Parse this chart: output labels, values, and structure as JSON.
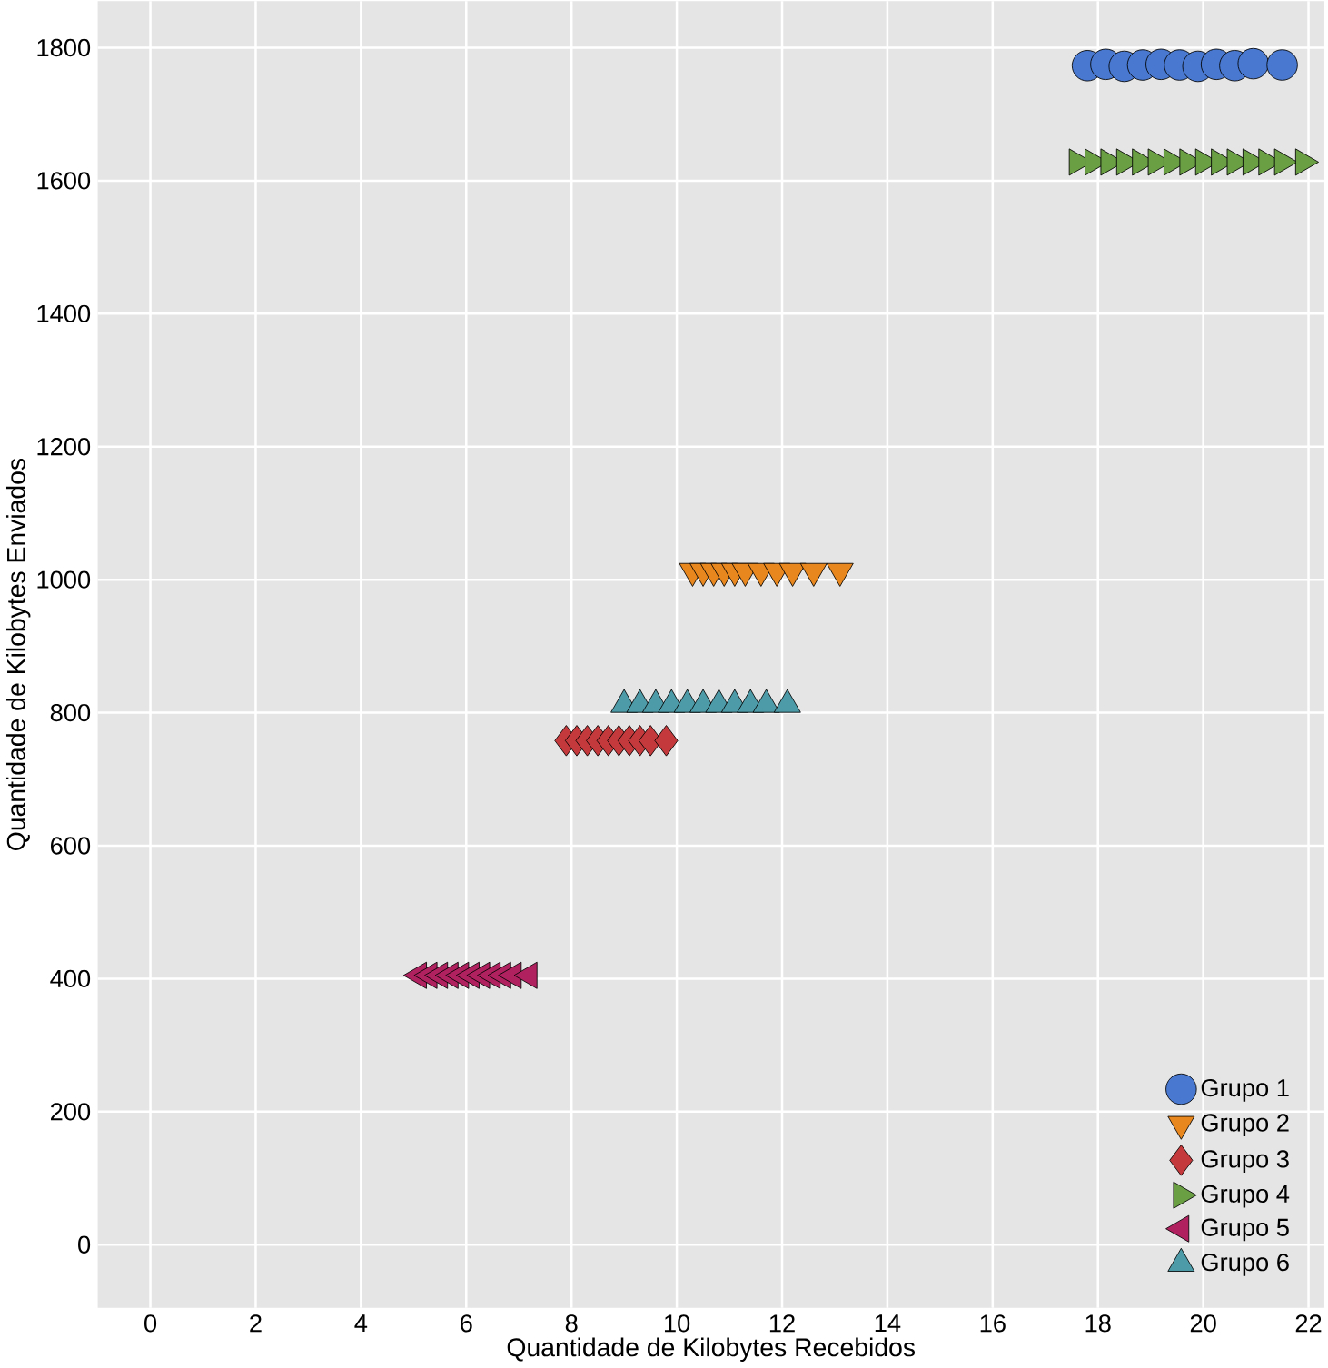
{
  "chart_data": {
    "type": "scatter",
    "xlabel": "Quantidade de Kilobytes Recebidos",
    "ylabel": "Quantidade de Kilobytes Enviados",
    "xlim": [
      -1,
      22.3
    ],
    "ylim": [
      -95,
      1870
    ],
    "xticks": [
      0,
      2,
      4,
      6,
      8,
      10,
      12,
      14,
      16,
      18,
      20,
      22
    ],
    "yticks": [
      0,
      200,
      400,
      600,
      800,
      1000,
      1200,
      1400,
      1600,
      1800
    ],
    "grid": true,
    "legend": "bottom right",
    "series": [
      {
        "name": "Grupo 1",
        "color": "#4878cf",
        "marker": "circle",
        "x": [
          17.8,
          18.15,
          18.5,
          18.85,
          19.2,
          19.55,
          19.9,
          20.25,
          20.6,
          20.95,
          21.5
        ],
        "values": [
          1773,
          1775,
          1772,
          1774,
          1775,
          1774,
          1772,
          1775,
          1773,
          1776,
          1774
        ]
      },
      {
        "name": "Grupo 2",
        "color": "#e8871e",
        "marker": "triangle-down",
        "x": [
          10.3,
          10.5,
          10.7,
          10.9,
          11.1,
          11.3,
          11.6,
          11.9,
          12.2,
          12.6,
          13.1
        ],
        "values": [
          1013,
          1013,
          1013,
          1013,
          1013,
          1013,
          1013,
          1013,
          1013,
          1013,
          1013
        ]
      },
      {
        "name": "Grupo 3",
        "color": "#c4393b",
        "marker": "diamond",
        "x": [
          7.9,
          8.1,
          8.3,
          8.5,
          8.7,
          8.9,
          9.1,
          9.3,
          9.5,
          9.8
        ],
        "values": [
          758,
          758,
          758,
          758,
          758,
          758,
          758,
          758,
          758,
          758
        ]
      },
      {
        "name": "Grupo 4",
        "color": "#6a9f44",
        "marker": "triangle-right",
        "x": [
          17.6,
          17.9,
          18.2,
          18.5,
          18.8,
          19.1,
          19.4,
          19.7,
          20.0,
          20.3,
          20.6,
          20.9,
          21.2,
          21.5,
          21.9
        ],
        "values": [
          1628,
          1628,
          1628,
          1628,
          1628,
          1628,
          1628,
          1628,
          1628,
          1628,
          1628,
          1628,
          1628,
          1628,
          1628
        ]
      },
      {
        "name": "Grupo 5",
        "color": "#b0225f",
        "marker": "triangle-left",
        "x": [
          5.1,
          5.3,
          5.5,
          5.7,
          5.9,
          6.1,
          6.3,
          6.5,
          6.7,
          6.9,
          7.2
        ],
        "values": [
          405,
          405,
          405,
          405,
          405,
          405,
          405,
          405,
          405,
          405,
          405
        ]
      },
      {
        "name": "Grupo 6",
        "color": "#4d9ba8",
        "marker": "triangle",
        "x": [
          9.0,
          9.3,
          9.6,
          9.9,
          10.2,
          10.5,
          10.8,
          11.1,
          11.4,
          11.7,
          12.1
        ],
        "values": [
          812,
          812,
          812,
          812,
          812,
          812,
          812,
          812,
          812,
          812,
          812
        ]
      }
    ]
  }
}
